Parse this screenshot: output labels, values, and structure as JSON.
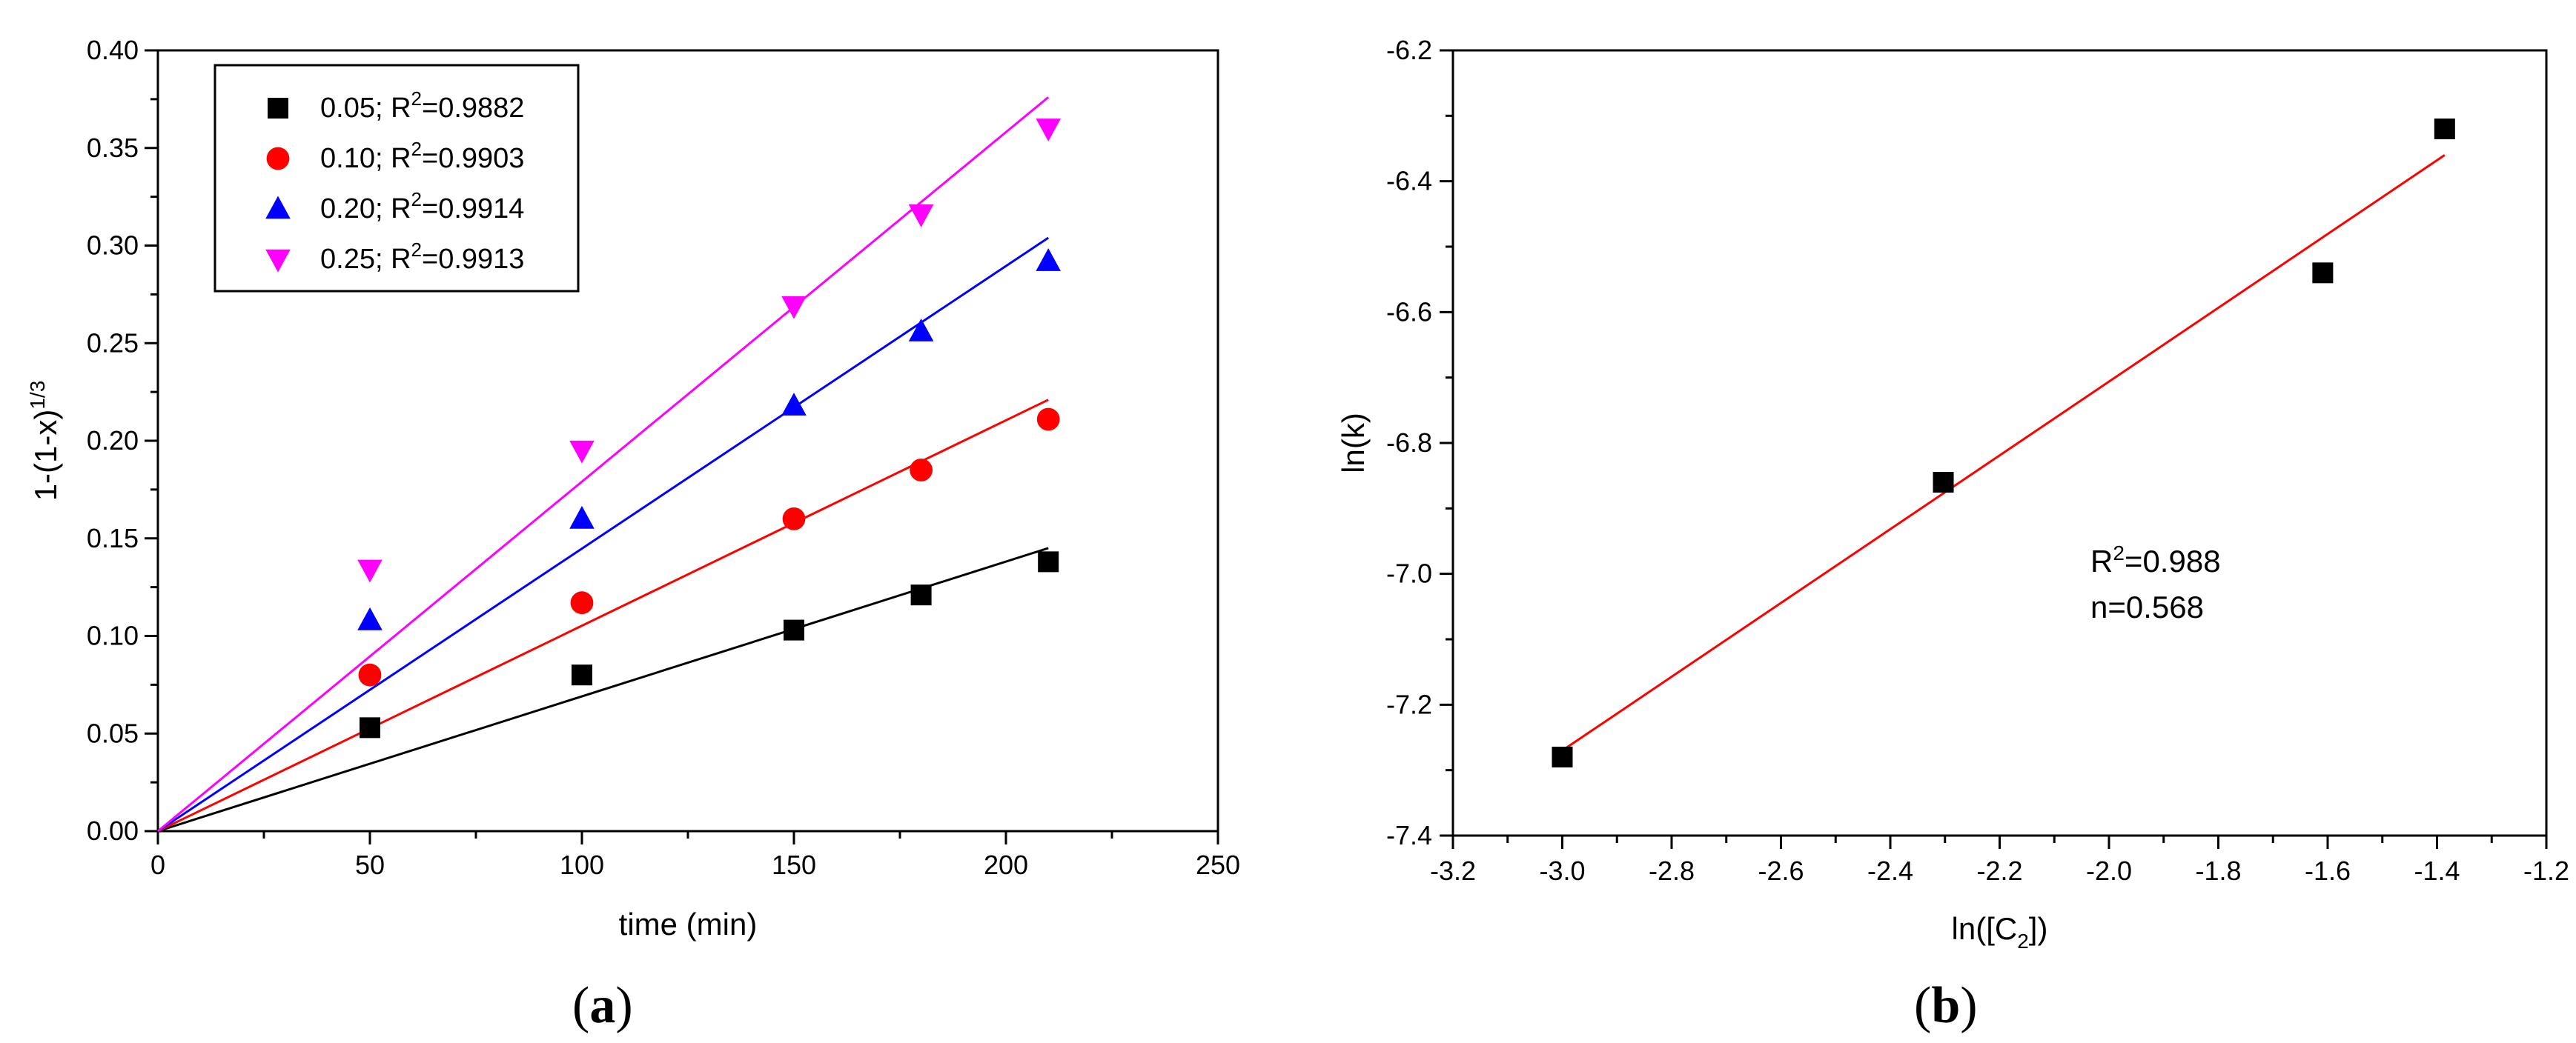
{
  "panels": [
    {
      "label": "a",
      "chart_data": {
        "type": "scatter",
        "xlabel": "time (min)",
        "ylabel_main": "1-(1-x)",
        "ylabel_sup": "1/3",
        "xlim": [
          0,
          250
        ],
        "ylim": [
          0,
          0.4
        ],
        "xticks": [
          0,
          50,
          100,
          150,
          200,
          250
        ],
        "yticks": [
          0.0,
          0.05,
          0.1,
          0.15,
          0.2,
          0.25,
          0.3,
          0.35,
          0.4
        ],
        "ytick_labels": [
          "0.00",
          "0.05",
          "0.10",
          "0.15",
          "0.20",
          "0.25",
          "0.30",
          "0.35",
          "0.40"
        ],
        "legend_position": "top-left",
        "series": [
          {
            "name": "0.05; R",
            "r2_sup": "2",
            "r2_value": "=0.9882",
            "marker": "square",
            "color": "#000000",
            "x": [
              50,
              100,
              150,
              180,
              210
            ],
            "y": [
              0.053,
              0.08,
              0.103,
              0.121,
              0.138
            ],
            "fit": {
              "x": [
                0,
                210
              ],
              "y": [
                0.0,
                0.145
              ]
            }
          },
          {
            "name": "0.10; R",
            "r2_sup": "2",
            "r2_value": "=0.9903",
            "marker": "circle",
            "color": "#ff0000",
            "x": [
              50,
              100,
              150,
              180,
              210
            ],
            "y": [
              0.08,
              0.117,
              0.16,
              0.185,
              0.211
            ],
            "fit": {
              "x": [
                0,
                210
              ],
              "y": [
                0.0,
                0.221
              ]
            }
          },
          {
            "name": "0.20; R",
            "r2_sup": "2",
            "r2_value": "=0.9914",
            "marker": "triangle-up",
            "color": "#0000ff",
            "x": [
              50,
              100,
              150,
              180,
              210
            ],
            "y": [
              0.108,
              0.16,
              0.218,
              0.256,
              0.292
            ],
            "fit": {
              "x": [
                0,
                210
              ],
              "y": [
                0.0,
                0.304
              ]
            }
          },
          {
            "name": "0.25; R",
            "r2_sup": "2",
            "r2_value": "=0.9913",
            "marker": "triangle-down",
            "color": "#ff00ff",
            "x": [
              50,
              100,
              150,
              180,
              210
            ],
            "y": [
              0.134,
              0.195,
              0.269,
              0.316,
              0.36
            ],
            "fit": {
              "x": [
                0,
                210
              ],
              "y": [
                0.0,
                0.376
              ]
            }
          }
        ]
      }
    },
    {
      "label": "b",
      "chart_data": {
        "type": "scatter",
        "xlabel_main": "ln([C",
        "xlabel_sub": "2",
        "xlabel_tail": "])",
        "ylabel": "ln(k)",
        "xlim": [
          -3.2,
          -1.2
        ],
        "ylim": [
          -7.4,
          -6.2
        ],
        "xticks": [
          -3.2,
          -3.0,
          -2.8,
          -2.6,
          -2.4,
          -2.2,
          -2.0,
          -1.8,
          -1.6,
          -1.4,
          -1.2
        ],
        "xtick_labels": [
          "-3.2",
          "-3.0",
          "-2.8",
          "-2.6",
          "-2.4",
          "-2.2",
          "-2.0",
          "-1.8",
          "-1.6",
          "-1.4",
          "-1.2"
        ],
        "yticks": [
          -7.4,
          -7.2,
          -7.0,
          -6.8,
          -6.6,
          -6.4,
          -6.2
        ],
        "ytick_labels": [
          "-7.4",
          "-7.2",
          "-7.0",
          "-6.8",
          "-6.6",
          "-6.4",
          "-6.2"
        ],
        "annotation": {
          "r2_prefix": "R",
          "r2_sup": "2",
          "r2_value": "=0.988",
          "n_text": "n=0.568"
        },
        "series": [
          {
            "marker": "square",
            "color": "#000000",
            "x": [
              -3.0,
              -2.303,
              -1.609,
              -1.386
            ],
            "y": [
              -7.28,
              -6.86,
              -6.54,
              -6.32
            ],
            "fit": {
              "x": [
                -3.0,
                -1.386
              ],
              "y": [
                -7.27,
                -6.36
              ],
              "color": "#ff0000"
            }
          }
        ]
      }
    }
  ]
}
